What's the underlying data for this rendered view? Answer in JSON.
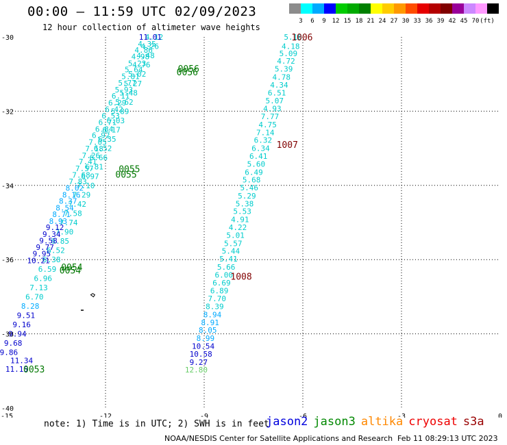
{
  "header": {
    "title": "00:00 – 11:59 UTC 02/09/2023",
    "subtitle": "12 hour collection of altimeter wave heights"
  },
  "colorbar": {
    "colors": [
      "#8c8c8c",
      "#00ffff",
      "#00aaff",
      "#0000ff",
      "#00cc00",
      "#00aa00",
      "#008000",
      "#ffff00",
      "#ffcc00",
      "#ff9900",
      "#ff4d00",
      "#e60000",
      "#b40000",
      "#800000",
      "#990099",
      "#cc88ff",
      "#ff99ff",
      "#000000"
    ],
    "labels": [
      "3",
      "6",
      "9",
      "12",
      "15",
      "18",
      "21",
      "24",
      "27",
      "30",
      "33",
      "36",
      "39",
      "42",
      "45",
      "70",
      "(ft)"
    ]
  },
  "footer": {
    "note": "note:  1) Time is in UTC; 2) SWH is in feet",
    "credit": "NOAA/NESDIS Center for Satellite Applications and Research",
    "timestamp": "Feb 11 08:29:13 UTC 2023"
  },
  "satellites": [
    {
      "name": "jason2",
      "color": "#0000dd"
    },
    {
      "name": "jason3",
      "color": "#008800"
    },
    {
      "name": "altika",
      "color": "#ff8800"
    },
    {
      "name": "cryosat",
      "color": "#ee0000"
    },
    {
      "name": "s3a",
      "color": "#990000"
    }
  ],
  "chart_data": {
    "type": "scatter",
    "xlim": [
      -15,
      0
    ],
    "ylim": [
      -40,
      -30
    ],
    "x_ticks": [
      -15,
      -12,
      -9,
      -6,
      -3,
      0
    ],
    "x_tick_labels": [
      "-15",
      "-12",
      "-9",
      "-6",
      "-3",
      "0"
    ],
    "y_ticks": [
      -30,
      -32,
      -34,
      -36,
      -38,
      -40
    ],
    "y_tick_labels": [
      "-30",
      "-32",
      "-34",
      "-36",
      "-38",
      "-40"
    ],
    "grid": true,
    "track_east": [
      {
        "lon": -6.3,
        "lat": -30.0,
        "swh": "5.16",
        "color": "#00cccc"
      },
      {
        "lon": -6.37,
        "lat": -30.25,
        "swh": "4.18",
        "color": "#00cccc"
      },
      {
        "lon": -6.44,
        "lat": -30.44,
        "swh": "5.09",
        "color": "#00cccc"
      },
      {
        "lon": -6.51,
        "lat": -30.65,
        "swh": "4.72",
        "color": "#00cccc"
      },
      {
        "lon": -6.58,
        "lat": -30.86,
        "swh": "5.39",
        "color": "#00cccc"
      },
      {
        "lon": -6.65,
        "lat": -31.08,
        "swh": "4.78",
        "color": "#00cccc"
      },
      {
        "lon": -6.72,
        "lat": -31.29,
        "swh": "4.34",
        "color": "#00cccc"
      },
      {
        "lon": -6.79,
        "lat": -31.5,
        "swh": "6.51",
        "color": "#00cccc"
      },
      {
        "lon": -6.86,
        "lat": -31.72,
        "swh": "5.07",
        "color": "#00cccc"
      },
      {
        "lon": -6.93,
        "lat": -31.93,
        "swh": "4.93",
        "color": "#00cccc"
      },
      {
        "lon": -7.0,
        "lat": -32.14,
        "swh": "7.77",
        "color": "#00cccc"
      },
      {
        "lon": -7.07,
        "lat": -32.36,
        "swh": "4.75",
        "color": "#00cccc"
      },
      {
        "lon": -7.14,
        "lat": -32.57,
        "swh": "7.14",
        "color": "#00cccc"
      },
      {
        "lon": -7.21,
        "lat": -32.78,
        "swh": "6.32",
        "color": "#00cccc"
      },
      {
        "lon": -7.28,
        "lat": -33.0,
        "swh": "6.34",
        "color": "#00cccc"
      },
      {
        "lon": -7.35,
        "lat": -33.21,
        "swh": "6.41",
        "color": "#00cccc"
      },
      {
        "lon": -7.42,
        "lat": -33.42,
        "swh": "5.60",
        "color": "#00cccc"
      },
      {
        "lon": -7.49,
        "lat": -33.64,
        "swh": "6.49",
        "color": "#00cccc"
      },
      {
        "lon": -7.56,
        "lat": -33.85,
        "swh": "5.68",
        "color": "#00cccc"
      },
      {
        "lon": -7.63,
        "lat": -34.06,
        "swh": "5.46",
        "color": "#00cccc"
      },
      {
        "lon": -7.7,
        "lat": -34.28,
        "swh": "5.29",
        "color": "#00cccc"
      },
      {
        "lon": -7.77,
        "lat": -34.49,
        "swh": "5.38",
        "color": "#00cccc"
      },
      {
        "lon": -7.84,
        "lat": -34.7,
        "swh": "5.53",
        "color": "#00cccc"
      },
      {
        "lon": -7.91,
        "lat": -34.92,
        "swh": "4.91",
        "color": "#00cccc"
      },
      {
        "lon": -7.98,
        "lat": -35.13,
        "swh": "4.22",
        "color": "#00cccc"
      },
      {
        "lon": -8.05,
        "lat": -35.34,
        "swh": "5.01",
        "color": "#00cccc"
      },
      {
        "lon": -8.12,
        "lat": -35.56,
        "swh": "5.57",
        "color": "#00cccc"
      },
      {
        "lon": -8.19,
        "lat": -35.77,
        "swh": "5.44",
        "color": "#00cccc"
      },
      {
        "lon": -8.26,
        "lat": -35.98,
        "swh": "5.41",
        "color": "#00cccc"
      },
      {
        "lon": -8.33,
        "lat": -36.2,
        "swh": "5.66",
        "color": "#00cccc"
      },
      {
        "lon": -8.4,
        "lat": -36.41,
        "swh": "6.00",
        "color": "#00cccc"
      },
      {
        "lon": -8.47,
        "lat": -36.62,
        "swh": "6.69",
        "color": "#00cccc"
      },
      {
        "lon": -8.54,
        "lat": -36.84,
        "swh": "6.89",
        "color": "#00cccc"
      },
      {
        "lon": -8.61,
        "lat": -37.05,
        "swh": "7.70",
        "color": "#00cccc"
      },
      {
        "lon": -8.68,
        "lat": -37.26,
        "swh": "8.39",
        "color": "#00cccc"
      },
      {
        "lon": -8.75,
        "lat": -37.48,
        "swh": "8.94",
        "color": "#00aaff"
      },
      {
        "lon": -8.82,
        "lat": -37.69,
        "swh": "8.91",
        "color": "#00aaff"
      },
      {
        "lon": -8.89,
        "lat": -37.9,
        "swh": "8.05",
        "color": "#00aaff"
      },
      {
        "lon": -8.96,
        "lat": -38.12,
        "swh": "8.99",
        "color": "#00aaff"
      },
      {
        "lon": -9.03,
        "lat": -38.33,
        "swh": "10.54",
        "color": "#0000cc"
      },
      {
        "lon": -9.1,
        "lat": -38.54,
        "swh": "10.58",
        "color": "#0000cc"
      },
      {
        "lon": -9.17,
        "lat": -38.76,
        "swh": "9.27",
        "color": "#0000cc"
      },
      {
        "lon": -9.24,
        "lat": -38.97,
        "swh": "12.80",
        "color": "#66cc66"
      }
    ],
    "track_west": [
      {
        "lon": -10.64,
        "lat": -30.0,
        "swh": "11.01",
        "color": "#0000cc"
      },
      {
        "lon": -10.74,
        "lat": -30.18,
        "swh": "4.35",
        "color": "#00cccc"
      },
      {
        "lon": -10.84,
        "lat": -30.35,
        "swh": "4.86",
        "color": "#00cccc"
      },
      {
        "lon": -10.94,
        "lat": -30.53,
        "swh": "4.98",
        "color": "#00cccc"
      },
      {
        "lon": -11.04,
        "lat": -30.71,
        "swh": "5.23",
        "color": "#00cccc"
      },
      {
        "lon": -11.14,
        "lat": -30.88,
        "swh": "5.64",
        "color": "#00cccc"
      },
      {
        "lon": -11.24,
        "lat": -31.06,
        "swh": "5.81",
        "color": "#00cccc"
      },
      {
        "lon": -11.34,
        "lat": -31.24,
        "swh": "5.77",
        "color": "#00cccc"
      },
      {
        "lon": -11.44,
        "lat": -31.42,
        "swh": "5.93",
        "color": "#00cccc"
      },
      {
        "lon": -11.54,
        "lat": -31.59,
        "swh": "6.11",
        "color": "#00cccc"
      },
      {
        "lon": -11.64,
        "lat": -31.77,
        "swh": "6.29",
        "color": "#00cccc"
      },
      {
        "lon": -11.74,
        "lat": -31.95,
        "swh": "6.42",
        "color": "#00cccc"
      },
      {
        "lon": -11.84,
        "lat": -32.12,
        "swh": "6.53",
        "color": "#00cccc"
      },
      {
        "lon": -11.94,
        "lat": -32.3,
        "swh": "6.71",
        "color": "#00cccc"
      },
      {
        "lon": -12.04,
        "lat": -32.48,
        "swh": "6.84",
        "color": "#00cccc"
      },
      {
        "lon": -12.14,
        "lat": -32.65,
        "swh": "6.92",
        "color": "#00cccc"
      },
      {
        "lon": -12.24,
        "lat": -32.83,
        "swh": "7.05",
        "color": "#00cccc"
      },
      {
        "lon": -12.34,
        "lat": -33.01,
        "swh": "7.18",
        "color": "#00cccc"
      },
      {
        "lon": -12.44,
        "lat": -33.19,
        "swh": "7.26",
        "color": "#00cccc"
      },
      {
        "lon": -12.54,
        "lat": -33.36,
        "swh": "7.41",
        "color": "#00cccc"
      },
      {
        "lon": -12.64,
        "lat": -33.54,
        "swh": "7.57",
        "color": "#00cccc"
      },
      {
        "lon": -12.74,
        "lat": -33.72,
        "swh": "7.68",
        "color": "#00cccc"
      },
      {
        "lon": -12.84,
        "lat": -33.89,
        "swh": "7.83",
        "color": "#00cccc"
      },
      {
        "lon": -12.94,
        "lat": -34.07,
        "swh": "8.02",
        "color": "#00aaff"
      },
      {
        "lon": -13.04,
        "lat": -34.25,
        "swh": "8.16",
        "color": "#00aaff"
      },
      {
        "lon": -13.14,
        "lat": -34.42,
        "swh": "8.37",
        "color": "#00aaff"
      },
      {
        "lon": -13.24,
        "lat": -34.6,
        "swh": "8.54",
        "color": "#00aaff"
      },
      {
        "lon": -13.34,
        "lat": -34.78,
        "swh": "8.71",
        "color": "#00aaff"
      },
      {
        "lon": -13.44,
        "lat": -34.96,
        "swh": "8.93",
        "color": "#00aaff"
      },
      {
        "lon": -13.54,
        "lat": -35.13,
        "swh": "9.12",
        "color": "#0000cc"
      },
      {
        "lon": -13.64,
        "lat": -35.31,
        "swh": "9.34",
        "color": "#0000cc"
      },
      {
        "lon": -13.74,
        "lat": -35.49,
        "swh": "9.58",
        "color": "#0000cc"
      },
      {
        "lon": -13.84,
        "lat": -35.66,
        "swh": "9.77",
        "color": "#0000cc"
      },
      {
        "lon": -13.94,
        "lat": -35.84,
        "swh": "9.95",
        "color": "#0000cc"
      },
      {
        "lon": -14.04,
        "lat": -36.02,
        "swh": "10.21",
        "color": "#0000cc"
      }
    ],
    "track_west2": [
      {
        "lon": -10.52,
        "lat": -30.0,
        "swh": "4.12",
        "color": "#00cccc"
      },
      {
        "lon": -10.65,
        "lat": -30.25,
        "swh": "4.26",
        "color": "#00cccc"
      },
      {
        "lon": -10.78,
        "lat": -30.5,
        "swh": "4.48",
        "color": "#00cccc"
      },
      {
        "lon": -10.91,
        "lat": -30.75,
        "swh": "4.76",
        "color": "#00cccc"
      },
      {
        "lon": -11.04,
        "lat": -31.0,
        "swh": "5.02",
        "color": "#00cccc"
      },
      {
        "lon": -11.17,
        "lat": -31.25,
        "swh": "5.27",
        "color": "#00cccc"
      },
      {
        "lon": -11.3,
        "lat": -31.5,
        "swh": "5.48",
        "color": "#00cccc"
      },
      {
        "lon": -11.43,
        "lat": -31.75,
        "swh": "5.62",
        "color": "#00cccc"
      },
      {
        "lon": -11.56,
        "lat": -32.0,
        "swh": "5.89",
        "color": "#00cccc"
      },
      {
        "lon": -11.69,
        "lat": -32.25,
        "swh": "6.03",
        "color": "#00cccc"
      },
      {
        "lon": -11.82,
        "lat": -32.5,
        "swh": "6.17",
        "color": "#00cccc"
      },
      {
        "lon": -11.95,
        "lat": -32.75,
        "swh": "6.35",
        "color": "#00cccc"
      },
      {
        "lon": -12.08,
        "lat": -33.0,
        "swh": "6.52",
        "color": "#00cccc"
      },
      {
        "lon": -12.21,
        "lat": -33.25,
        "swh": "6.66",
        "color": "#00cccc"
      },
      {
        "lon": -12.34,
        "lat": -33.5,
        "swh": "6.81",
        "color": "#00cccc"
      },
      {
        "lon": -12.47,
        "lat": -33.75,
        "swh": "6.97",
        "color": "#00cccc"
      },
      {
        "lon": -12.6,
        "lat": -34.0,
        "swh": "7.10",
        "color": "#00cccc"
      },
      {
        "lon": -12.73,
        "lat": -34.25,
        "swh": "7.29",
        "color": "#00cccc"
      },
      {
        "lon": -12.86,
        "lat": -34.5,
        "swh": "7.42",
        "color": "#00cccc"
      },
      {
        "lon": -12.99,
        "lat": -34.75,
        "swh": "7.58",
        "color": "#00cccc"
      },
      {
        "lon": -13.12,
        "lat": -35.0,
        "swh": "7.74",
        "color": "#00cccc"
      },
      {
        "lon": -13.25,
        "lat": -35.25,
        "swh": "7.90",
        "color": "#00cccc"
      },
      {
        "lon": -13.38,
        "lat": -35.5,
        "swh": "6.85",
        "color": "#00cccc"
      },
      {
        "lon": -13.51,
        "lat": -35.75,
        "swh": "6.52",
        "color": "#00cccc"
      },
      {
        "lon": -13.64,
        "lat": -36.0,
        "swh": "6.38",
        "color": "#00cccc"
      },
      {
        "lon": -13.77,
        "lat": -36.25,
        "swh": "6.59",
        "color": "#00cccc"
      },
      {
        "lon": -13.9,
        "lat": -36.5,
        "swh": "6.96",
        "color": "#00cccc"
      },
      {
        "lon": -14.03,
        "lat": -36.75,
        "swh": "7.13",
        "color": "#00cccc"
      },
      {
        "lon": -14.16,
        "lat": -37.0,
        "swh": "6.70",
        "color": "#00cccc"
      },
      {
        "lon": -14.29,
        "lat": -37.25,
        "swh": "8.28",
        "color": "#00aaff"
      },
      {
        "lon": -14.42,
        "lat": -37.5,
        "swh": "9.51",
        "color": "#0000cc"
      },
      {
        "lon": -14.55,
        "lat": -37.75,
        "swh": "9.16",
        "color": "#0000cc"
      },
      {
        "lon": -14.68,
        "lat": -38.0,
        "swh": "9.94",
        "color": "#0000cc"
      },
      {
        "lon": -14.81,
        "lat": -38.25,
        "swh": "9.68",
        "color": "#0000cc"
      },
      {
        "lon": -14.94,
        "lat": -38.5,
        "swh": "9.86",
        "color": "#0000cc"
      }
    ],
    "track_west_tail": [
      {
        "lon": -14.55,
        "lat": -38.72,
        "swh": "11.34",
        "color": "#0000cc"
      },
      {
        "lon": -14.7,
        "lat": -38.95,
        "swh": "11.15",
        "color": "#0000cc"
      }
    ],
    "time_labels": [
      {
        "lon": -6.35,
        "lat": -30.0,
        "text": "1006",
        "color": "#800000"
      },
      {
        "lon": -6.8,
        "lat": -32.9,
        "text": "1007",
        "color": "#800000"
      },
      {
        "lon": -8.2,
        "lat": -36.45,
        "text": "1008",
        "color": "#800000"
      },
      {
        "lon": -9.8,
        "lat": -30.85,
        "text": "0056",
        "color": "#007700"
      },
      {
        "lon": -9.84,
        "lat": -30.94,
        "text": "0056",
        "color": "#007700"
      },
      {
        "lon": -11.6,
        "lat": -33.55,
        "text": "0055",
        "color": "#007700"
      },
      {
        "lon": -11.7,
        "lat": -33.7,
        "text": "0055",
        "color": "#007700"
      },
      {
        "lon": -13.35,
        "lat": -36.2,
        "text": "0054",
        "color": "#007700"
      },
      {
        "lon": -13.4,
        "lat": -36.28,
        "text": "0054",
        "color": "#007700"
      },
      {
        "lon": -14.5,
        "lat": -38.95,
        "text": "0053",
        "color": "#007700"
      }
    ]
  }
}
